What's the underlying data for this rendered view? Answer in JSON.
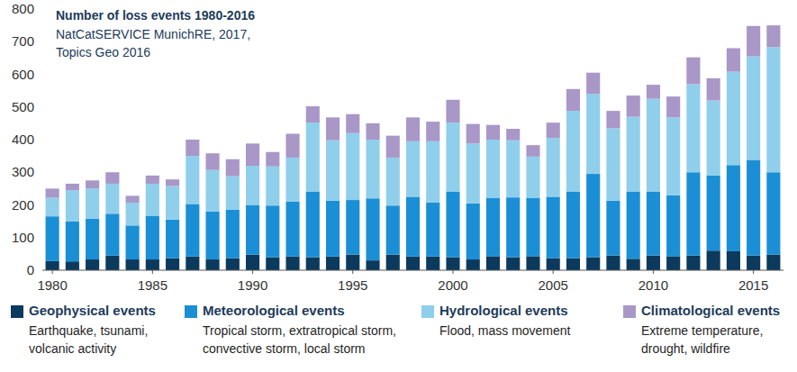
{
  "chart_data": {
    "type": "bar",
    "title": "Number of loss events 1980-2016",
    "subtitle": [
      "NatCatSERVICE MunichRE, 2017,",
      "Topics Geo 2016"
    ],
    "stacked": true,
    "grid": false,
    "legend": "bottom",
    "x": [
      1980,
      1981,
      1982,
      1983,
      1984,
      1985,
      1986,
      1987,
      1988,
      1989,
      1990,
      1991,
      1992,
      1993,
      1994,
      1995,
      1996,
      1997,
      1998,
      1999,
      2000,
      2001,
      2002,
      2003,
      2004,
      2005,
      2006,
      2007,
      2008,
      2009,
      2010,
      2011,
      2012,
      2013,
      2014,
      2015,
      2016
    ],
    "xlim": [
      1979.5,
      2016.5
    ],
    "xticks": [
      1980,
      1985,
      1990,
      1995,
      2000,
      2005,
      2010,
      2015
    ],
    "ylim": [
      0,
      800
    ],
    "yticks": [
      0,
      100,
      200,
      300,
      400,
      500,
      600,
      700,
      800
    ],
    "series": [
      {
        "name": "Geophysical events",
        "description": [
          "Earthquake, tsunami,",
          "volcanic activity"
        ],
        "color": "#0b3a5d",
        "values": [
          28,
          27,
          33,
          45,
          33,
          33,
          37,
          42,
          33,
          37,
          48,
          40,
          42,
          40,
          42,
          48,
          30,
          48,
          42,
          42,
          40,
          33,
          43,
          40,
          43,
          37,
          37,
          40,
          45,
          35,
          45,
          43,
          45,
          60,
          58,
          45,
          48
        ]
      },
      {
        "name": "Meteorological events",
        "description": [
          "Tropical storm, extratropical storm,",
          "convective storm, local storm"
        ],
        "color": "#1b8fd5",
        "values": [
          137,
          123,
          125,
          128,
          104,
          134,
          118,
          161,
          147,
          148,
          152,
          158,
          168,
          200,
          171,
          167,
          190,
          150,
          183,
          166,
          200,
          172,
          179,
          183,
          179,
          188,
          203,
          255,
          168,
          205,
          195,
          187,
          255,
          230,
          264,
          293,
          252
        ]
      },
      {
        "name": "Hydrological events",
        "description": [
          "Flood, mass movement"
        ],
        "color": "#8fcfeb",
        "values": [
          57,
          95,
          92,
          92,
          70,
          98,
          103,
          147,
          127,
          103,
          120,
          120,
          135,
          212,
          185,
          205,
          180,
          147,
          170,
          187,
          212,
          183,
          178,
          175,
          126,
          180,
          248,
          245,
          222,
          230,
          285,
          238,
          270,
          230,
          286,
          317,
          383
        ]
      },
      {
        "name": "Climatological events",
        "description": [
          "Extreme temperature,",
          "drought, wildfire"
        ],
        "color": "#a897c7",
        "values": [
          28,
          20,
          25,
          35,
          21,
          25,
          20,
          50,
          51,
          52,
          68,
          44,
          73,
          50,
          70,
          58,
          50,
          67,
          73,
          60,
          70,
          60,
          45,
          35,
          35,
          47,
          67,
          65,
          53,
          65,
          43,
          64,
          82,
          68,
          72,
          93,
          67
        ]
      }
    ]
  }
}
